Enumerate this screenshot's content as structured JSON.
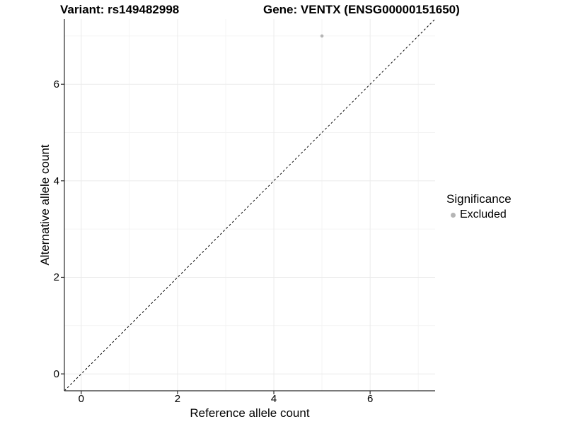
{
  "chart_data": {
    "type": "scatter",
    "title_left": "Variant: rs149482998",
    "title_right": "Gene: VENTX (ENSG00000151650)",
    "xlabel": "Reference allele count",
    "ylabel": "Alternative allele count",
    "xlim": [
      -0.35,
      7.35
    ],
    "ylim": [
      -0.35,
      7.35
    ],
    "x_major_ticks": [
      0,
      2,
      4,
      6
    ],
    "y_major_ticks": [
      0,
      2,
      4,
      6
    ],
    "x_minor_gridlines": [
      1,
      3,
      5,
      7
    ],
    "y_minor_gridlines": [
      1,
      3,
      5,
      7
    ],
    "grid": "on",
    "points": [
      {
        "x": 5,
        "y": 7,
        "series": "Excluded"
      }
    ],
    "abline": {
      "slope": 1,
      "intercept": 0,
      "linetype": "dashed",
      "color": "#000000"
    },
    "legend": {
      "title": "Significance",
      "position": "right",
      "items": [
        {
          "label": "Excluded",
          "color": "#b5b5b5"
        }
      ]
    }
  },
  "colors": {
    "background": "#ffffff",
    "grid_major": "#ebebeb",
    "grid_minor": "#f4f4f4",
    "axis_line": "#2b2b2b",
    "text": "#000000",
    "point": "#b5b5b5"
  }
}
